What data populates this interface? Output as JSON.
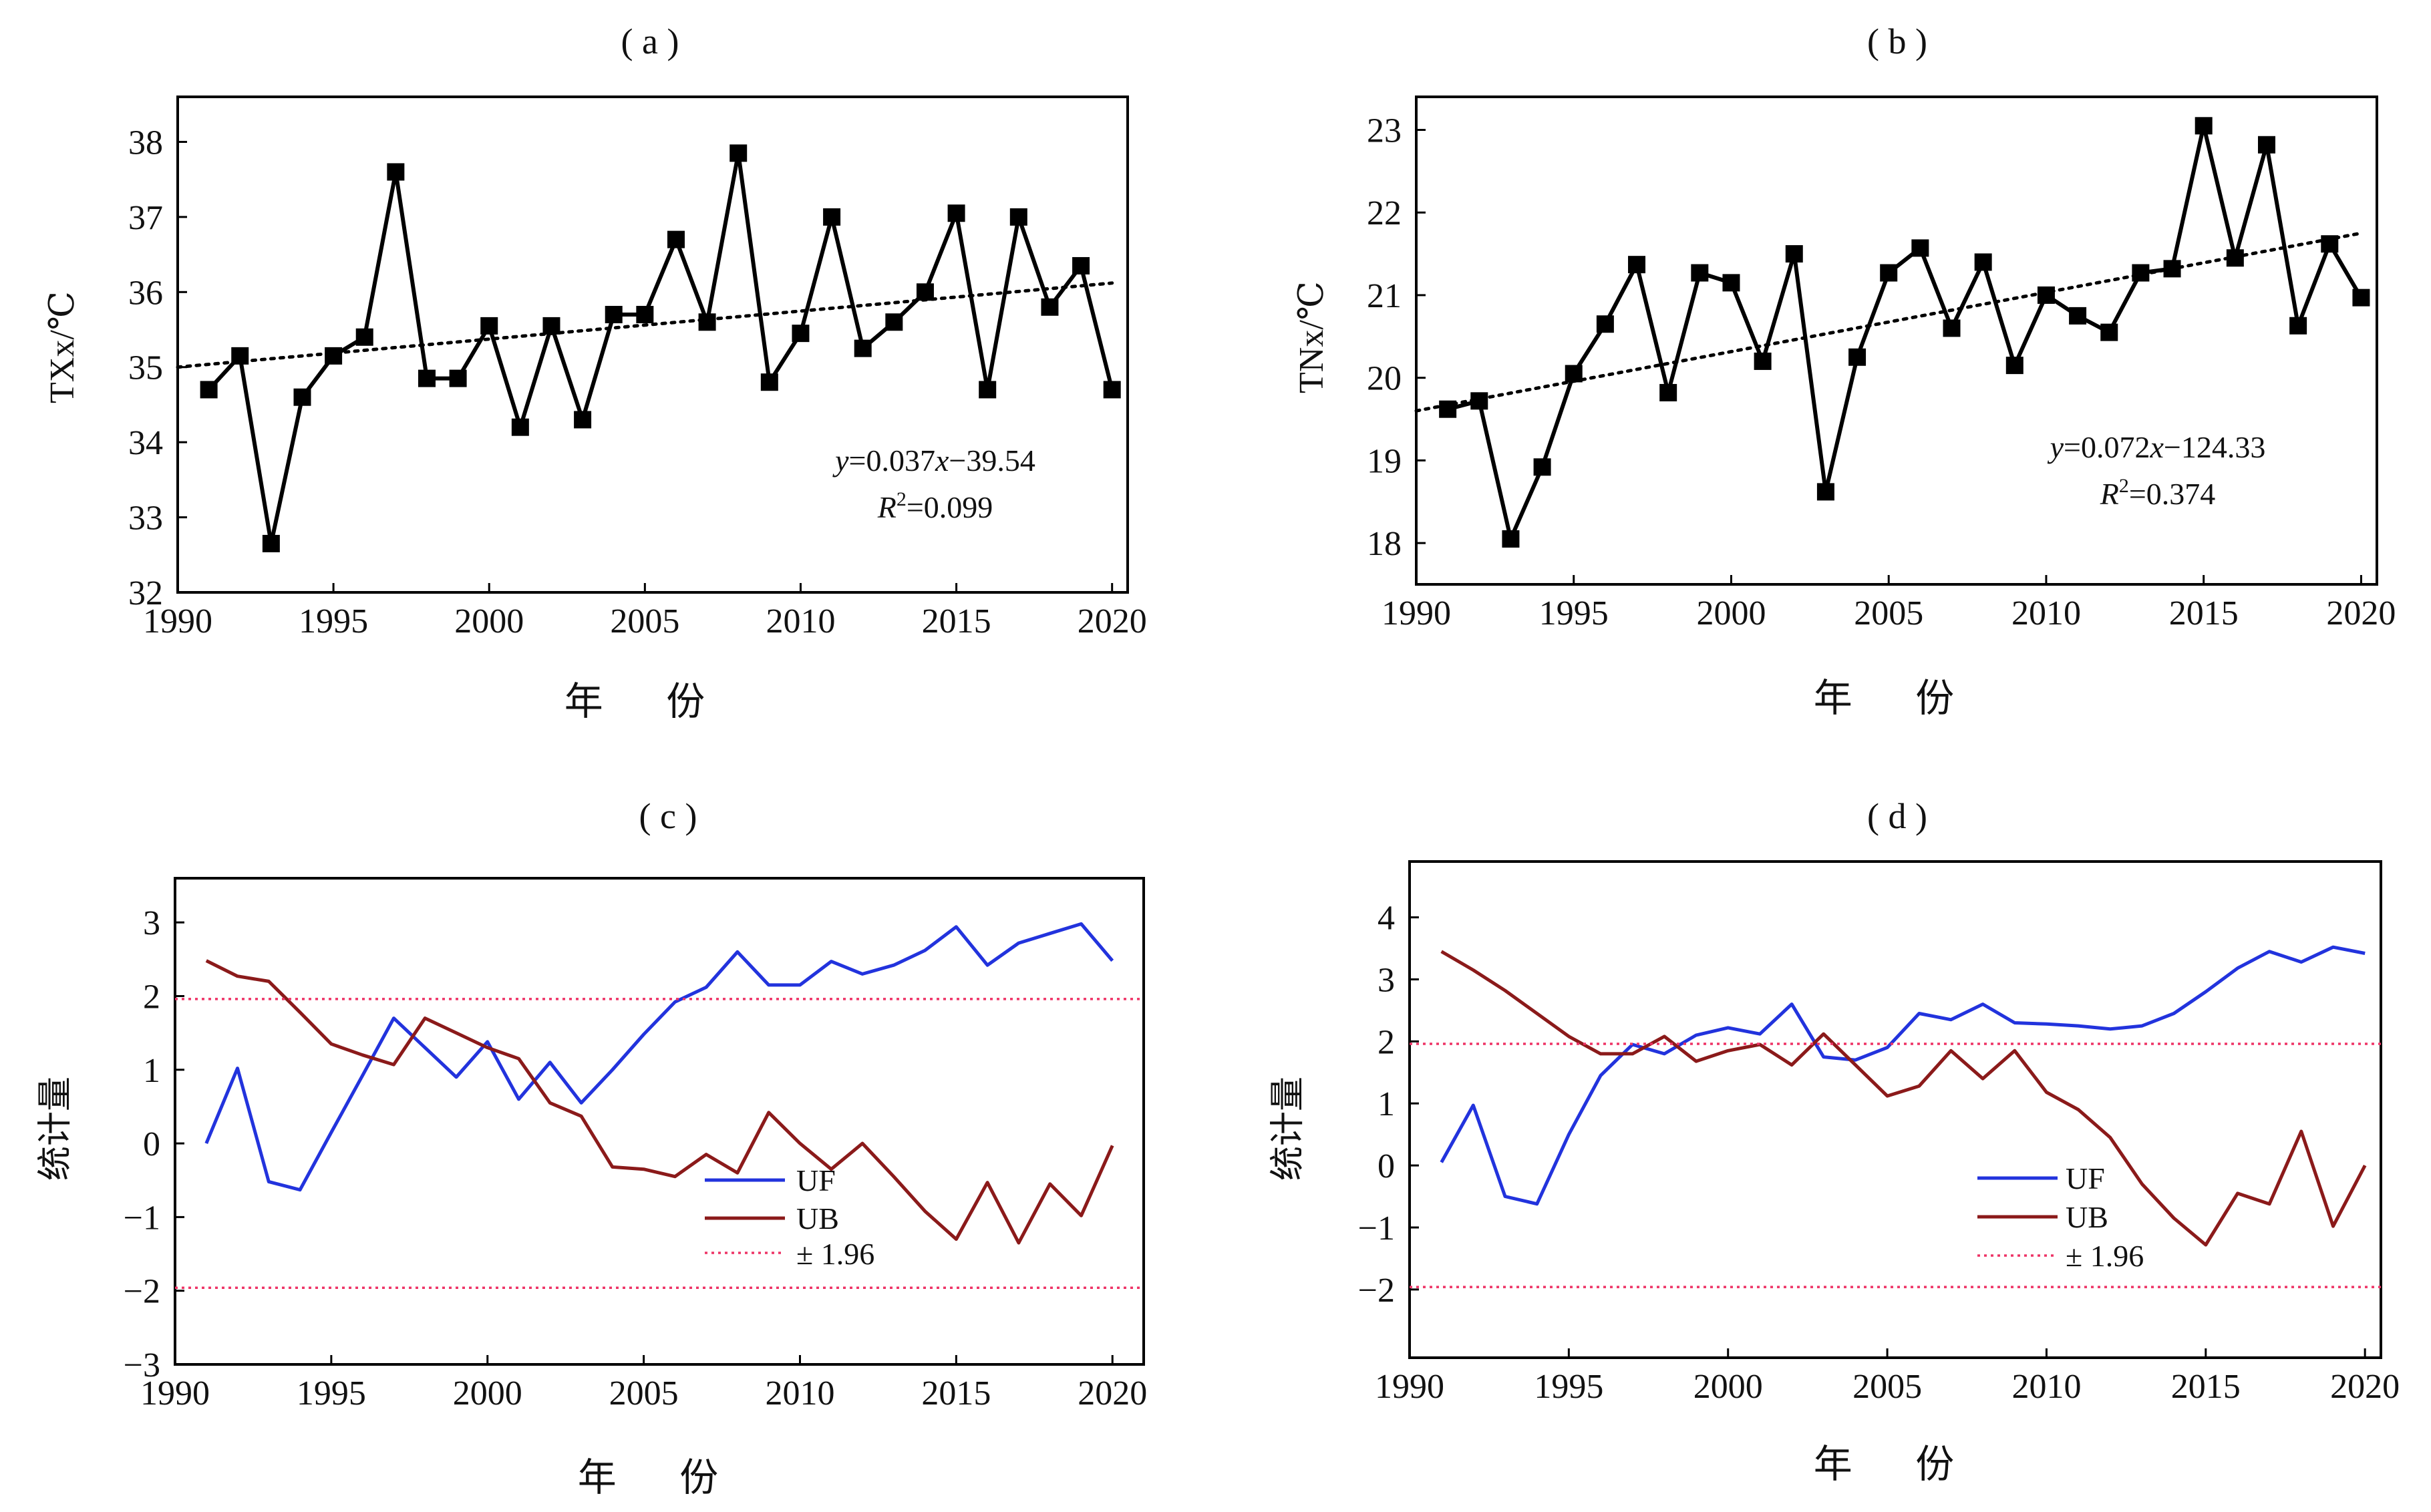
{
  "chart_data": [
    {
      "panel": "(a)",
      "type": "line",
      "xlabel": "年 份",
      "ylabel": "TXx/℃",
      "xlim": [
        1990,
        2020.5
      ],
      "ylim": [
        32,
        38.6
      ],
      "xticks": [
        1990,
        1995,
        2000,
        2005,
        2010,
        2015,
        2020
      ],
      "yticks": [
        32,
        33,
        34,
        35,
        36,
        37,
        38
      ],
      "grid": false,
      "series": [
        {
          "marker": "square",
          "color": "#000000",
          "x": [
            1991,
            1992,
            1993,
            1994,
            1995,
            1996,
            1997,
            1998,
            1999,
            2000,
            2001,
            2002,
            2003,
            2004,
            2005,
            2006,
            2007,
            2008,
            2009,
            2010,
            2011,
            2012,
            2013,
            2014,
            2015,
            2016,
            2017,
            2018,
            2019,
            2020
          ],
          "values": [
            34.7,
            35.15,
            32.65,
            34.6,
            35.15,
            35.4,
            37.6,
            34.85,
            34.85,
            35.55,
            34.2,
            35.55,
            34.3,
            35.7,
            35.7,
            36.7,
            35.6,
            37.85,
            34.8,
            35.45,
            37.0,
            35.25,
            35.6,
            36.0,
            37.05,
            34.7,
            37.0,
            35.8,
            36.35,
            34.7
          ]
        }
      ],
      "trend": {
        "style": "dotted",
        "color": "#000000",
        "start": [
          1990,
          35.0
        ],
        "end": [
          2020,
          36.12
        ]
      },
      "annotation": {
        "equation": [
          "y",
          "=0.037",
          "x",
          "−39.54"
        ],
        "r2": [
          "R",
          "2",
          "=0.099"
        ]
      }
    },
    {
      "panel": "(b)",
      "type": "line",
      "xlabel": "年 份",
      "ylabel": "TNx/℃",
      "xlim": [
        1990,
        2020.5
      ],
      "ylim": [
        17.5,
        23.4
      ],
      "xticks": [
        1990,
        1995,
        2000,
        2005,
        2010,
        2015,
        2020
      ],
      "yticks": [
        18,
        19,
        20,
        21,
        22,
        23
      ],
      "grid": false,
      "series": [
        {
          "marker": "square",
          "color": "#000000",
          "x": [
            1991,
            1992,
            1993,
            1994,
            1995,
            1996,
            1997,
            1998,
            1999,
            2000,
            2001,
            2002,
            2003,
            2004,
            2005,
            2006,
            2007,
            2008,
            2009,
            2010,
            2011,
            2012,
            2013,
            2014,
            2015,
            2016,
            2017,
            2018,
            2019,
            2020
          ],
          "values": [
            19.62,
            19.72,
            18.05,
            18.92,
            20.05,
            20.65,
            21.37,
            19.82,
            21.27,
            21.15,
            20.2,
            21.5,
            18.62,
            20.25,
            21.27,
            21.57,
            20.6,
            21.4,
            20.15,
            21.0,
            20.75,
            20.55,
            21.27,
            21.32,
            23.05,
            21.45,
            22.82,
            20.63,
            21.62,
            20.97
          ]
        }
      ],
      "trend": {
        "style": "dotted",
        "color": "#000000",
        "start": [
          1990,
          19.6
        ],
        "end": [
          2020,
          21.75
        ]
      },
      "annotation": {
        "equation": [
          "y",
          "=0.072",
          "x",
          "−124.33"
        ],
        "r2": [
          "R",
          "2",
          "=0.374"
        ]
      }
    },
    {
      "panel": "(c)",
      "type": "line",
      "xlabel": "年 份",
      "ylabel": "统计量",
      "xlim": [
        1990,
        2021
      ],
      "ylim": [
        -3,
        3.6
      ],
      "xticks": [
        1990,
        1995,
        2000,
        2005,
        2010,
        2015,
        2020
      ],
      "yticks": [
        -3,
        -2,
        -1,
        0,
        1,
        2,
        3
      ],
      "grid": false,
      "legend_position": "lower-center",
      "series": [
        {
          "name": "UF",
          "color": "#2233dd",
          "x": [
            1991,
            1992,
            1993,
            1994,
            1995,
            1996,
            1997,
            1998,
            1999,
            2000,
            2001,
            2002,
            2003,
            2004,
            2005,
            2006,
            2007,
            2008,
            2009,
            2010,
            2011,
            2012,
            2013,
            2014,
            2015,
            2016,
            2017,
            2018,
            2019,
            2020
          ],
          "values": [
            0.0,
            1.02,
            -0.52,
            -0.63,
            0.15,
            0.92,
            1.7,
            1.3,
            0.9,
            1.38,
            0.6,
            1.1,
            0.55,
            1.0,
            1.48,
            1.92,
            2.12,
            2.6,
            2.15,
            2.15,
            2.47,
            2.3,
            2.42,
            2.62,
            2.94,
            2.42,
            2.72,
            2.85,
            2.98,
            2.48
          ]
        },
        {
          "name": "UB",
          "color": "#8b1a1a",
          "x": [
            1991,
            1992,
            1993,
            1994,
            1995,
            1996,
            1997,
            1998,
            1999,
            2000,
            2001,
            2002,
            2003,
            2004,
            2005,
            2006,
            2007,
            2008,
            2009,
            2010,
            2011,
            2012,
            2013,
            2014,
            2015,
            2016,
            2017,
            2018,
            2019,
            2020
          ],
          "values": [
            2.48,
            2.27,
            2.2,
            1.78,
            1.35,
            1.2,
            1.07,
            1.7,
            1.5,
            1.3,
            1.15,
            0.55,
            0.37,
            -0.32,
            -0.35,
            -0.45,
            -0.15,
            -0.4,
            0.42,
            0.0,
            -0.35,
            0.0,
            -0.45,
            -0.92,
            -1.3,
            -0.53,
            -1.35,
            -0.55,
            -0.98,
            -0.03
          ]
        },
        {
          "name": "± 1.96",
          "color": "#ee3366",
          "style": "dotted",
          "levels": [
            1.96,
            -1.96
          ]
        }
      ]
    },
    {
      "panel": "(d)",
      "type": "line",
      "xlabel": "年 份",
      "ylabel": "统计量",
      "xlim": [
        1990,
        2020.5
      ],
      "ylim": [
        -3.1,
        4.9
      ],
      "xticks": [
        1990,
        1995,
        2000,
        2005,
        2010,
        2015,
        2020
      ],
      "yticks": [
        -2,
        -1,
        0,
        1,
        2,
        3,
        4
      ],
      "grid": false,
      "legend_position": "lower-center",
      "series": [
        {
          "name": "UF",
          "color": "#2233dd",
          "x": [
            1991,
            1992,
            1993,
            1994,
            1995,
            1996,
            1997,
            1998,
            1999,
            2000,
            2001,
            2002,
            2003,
            2004,
            2005,
            2006,
            2007,
            2008,
            2009,
            2010,
            2011,
            2012,
            2013,
            2014,
            2015,
            2016,
            2017,
            2018,
            2019,
            2020
          ],
          "values": [
            0.05,
            0.97,
            -0.5,
            -0.62,
            0.5,
            1.45,
            1.95,
            1.8,
            2.1,
            2.22,
            2.12,
            2.6,
            1.75,
            1.7,
            1.9,
            2.45,
            2.35,
            2.6,
            2.3,
            2.28,
            2.25,
            2.2,
            2.25,
            2.45,
            2.8,
            3.18,
            3.45,
            3.28,
            3.52,
            3.42
          ]
        },
        {
          "name": "UB",
          "color": "#8b1a1a",
          "x": [
            1991,
            1992,
            1993,
            1994,
            1995,
            1996,
            1997,
            1998,
            1999,
            2000,
            2001,
            2002,
            2003,
            2004,
            2005,
            2006,
            2007,
            2008,
            2009,
            2010,
            2011,
            2012,
            2013,
            2014,
            2015,
            2016,
            2017,
            2018,
            2019,
            2020
          ],
          "values": [
            3.45,
            3.15,
            2.82,
            2.45,
            2.08,
            1.8,
            1.8,
            2.08,
            1.68,
            1.85,
            1.95,
            1.62,
            2.12,
            1.62,
            1.12,
            1.28,
            1.85,
            1.4,
            1.85,
            1.18,
            0.9,
            0.45,
            -0.3,
            -0.85,
            -1.28,
            -0.45,
            -0.62,
            0.55,
            -0.98,
            0.0
          ]
        },
        {
          "name": "± 1.96",
          "color": "#ee3366",
          "style": "dotted",
          "levels": [
            1.96,
            -1.96
          ]
        }
      ]
    }
  ]
}
